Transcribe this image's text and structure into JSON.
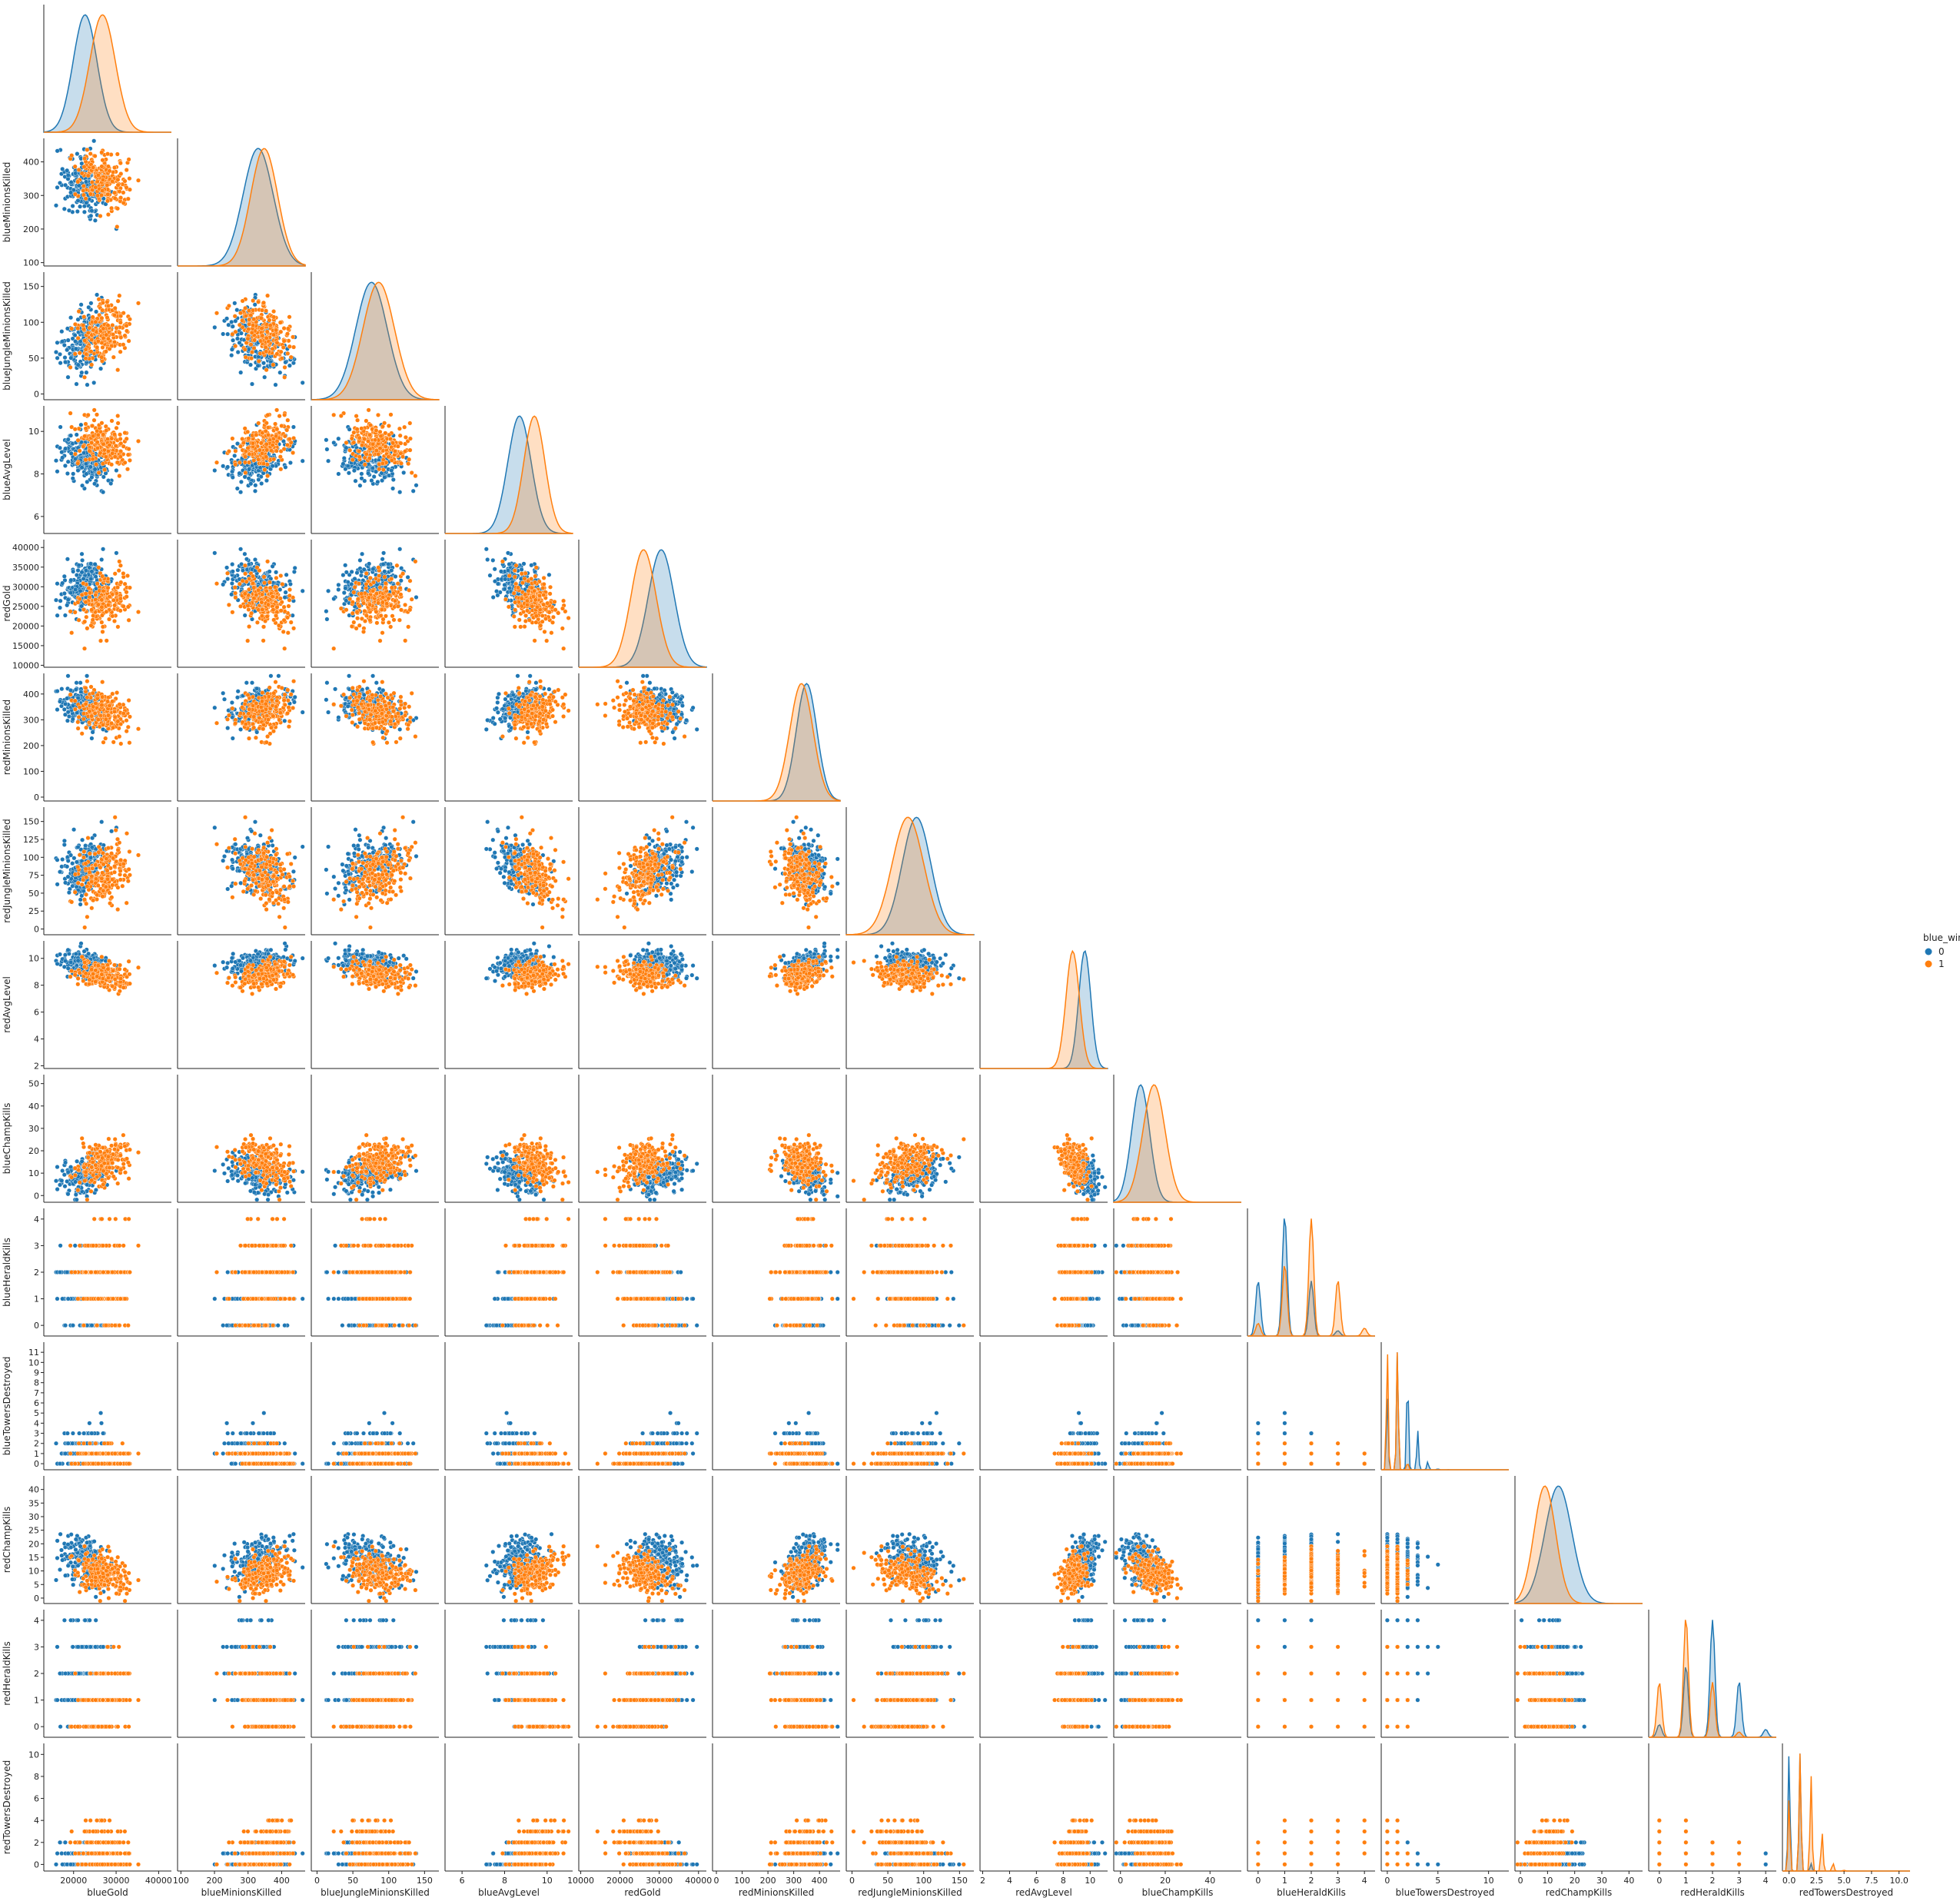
{
  "chart_data": {
    "type": "scatter",
    "kind": "pairplot (corner, lower triangle) with KDE diagonal",
    "hue": "blue_win",
    "legend": {
      "title": "blue_win",
      "entries": [
        "0",
        "1"
      ],
      "placement": "right"
    },
    "colors": {
      "0": "#1f77b4",
      "1": "#ff7f0e"
    },
    "variables": [
      {
        "name": "blueGold",
        "ticks": [
          20000,
          30000,
          40000
        ],
        "tick_labels": [
          "20000",
          "30000",
          "40000"
        ],
        "range": [
          13000,
          43000
        ],
        "stats": {
          "0": {
            "mean": 22700,
            "sd": 2800
          },
          "1": {
            "mean": 26800,
            "sd": 3000
          }
        },
        "discrete": false
      },
      {
        "name": "blueMinionsKilled",
        "ticks": [
          100,
          200,
          300,
          400
        ],
        "tick_labels": [
          "100",
          "200",
          "300",
          "400"
        ],
        "range": [
          90,
          470
        ],
        "stats": {
          "0": {
            "mean": 330,
            "sd": 45
          },
          "1": {
            "mean": 348,
            "sd": 40
          }
        },
        "discrete": false
      },
      {
        "name": "blueJungleMinionsKilled",
        "ticks": [
          0,
          50,
          100,
          150
        ],
        "tick_labels": [
          "0",
          "50",
          "100",
          "150"
        ],
        "range": [
          -8,
          170
        ],
        "stats": {
          "0": {
            "mean": 76,
            "sd": 22
          },
          "1": {
            "mean": 86,
            "sd": 22
          }
        },
        "discrete": false
      },
      {
        "name": "blueAvgLevel",
        "ticks": [
          6,
          8,
          10
        ],
        "tick_labels": [
          "6",
          "8",
          "10"
        ],
        "range": [
          5.2,
          11.2
        ],
        "stats": {
          "0": {
            "mean": 8.7,
            "sd": 0.55
          },
          "1": {
            "mean": 9.4,
            "sd": 0.5
          }
        },
        "discrete": false
      },
      {
        "name": "redGold",
        "ticks": [
          10000,
          15000,
          20000,
          25000,
          30000,
          35000,
          40000
        ],
        "tick_labels": [
          "10000",
          "20000",
          "30000",
          "40000"
        ],
        "tick_label_values": [
          10000,
          20000,
          30000,
          40000
        ],
        "y_tick_labels": [
          "10000",
          "15000",
          "20000",
          "25000",
          "30000",
          "35000",
          "40000"
        ],
        "range": [
          9500,
          42000
        ],
        "stats": {
          "0": {
            "mean": 30500,
            "sd": 3300
          },
          "1": {
            "mean": 26000,
            "sd": 3200
          }
        },
        "discrete": false
      },
      {
        "name": "redMinionsKilled",
        "ticks": [
          0,
          100,
          200,
          300,
          400
        ],
        "tick_labels": [
          "0",
          "100",
          "200",
          "300",
          "400"
        ],
        "range": [
          -15,
          480
        ],
        "stats": {
          "0": {
            "mean": 350,
            "sd": 40
          },
          "1": {
            "mean": 330,
            "sd": 45
          }
        },
        "discrete": false
      },
      {
        "name": "redJungleMinionsKilled",
        "ticks": [
          0,
          25,
          50,
          75,
          100,
          125,
          150
        ],
        "tick_labels": [
          "0",
          "50",
          "100",
          "150"
        ],
        "tick_label_values": [
          0,
          50,
          100,
          150
        ],
        "y_tick_labels": [
          "0",
          "25",
          "50",
          "75",
          "100",
          "125",
          "150"
        ],
        "range": [
          -8,
          170
        ],
        "stats": {
          "0": {
            "mean": 90,
            "sd": 20
          },
          "1": {
            "mean": 78,
            "sd": 22
          }
        },
        "discrete": false
      },
      {
        "name": "redAvgLevel",
        "ticks": [
          2,
          4,
          6,
          8,
          10
        ],
        "tick_labels": [
          "2",
          "4",
          "6",
          "8",
          "10"
        ],
        "range": [
          1.8,
          11.3
        ],
        "stats": {
          "0": {
            "mean": 9.6,
            "sd": 0.45
          },
          "1": {
            "mean": 8.7,
            "sd": 0.5
          }
        },
        "discrete": false
      },
      {
        "name": "blueChampKills",
        "ticks": [
          0,
          10,
          20,
          30,
          40,
          50
        ],
        "tick_labels": [
          "0",
          "20",
          "40"
        ],
        "tick_label_values": [
          0,
          20,
          40
        ],
        "y_tick_labels": [
          "0",
          "10",
          "20",
          "30",
          "40",
          "50"
        ],
        "range": [
          -3,
          54
        ],
        "stats": {
          "0": {
            "mean": 9,
            "sd": 4
          },
          "1": {
            "mean": 15,
            "sd": 5
          }
        },
        "discrete": false
      },
      {
        "name": "blueHeraldKills",
        "ticks": [
          0,
          1,
          2,
          3,
          4
        ],
        "tick_labels": [
          "0",
          "1",
          "2",
          "3",
          "4"
        ],
        "range": [
          -0.4,
          4.4
        ],
        "stats": {
          "0": {
            "mean": 1.0,
            "sd": 0.8
          },
          "1": {
            "mean": 1.9,
            "sd": 0.9
          }
        },
        "discrete": true
      },
      {
        "name": "blueTowersDestroyed",
        "ticks": [
          0,
          1,
          2,
          3,
          4,
          5,
          6,
          7,
          8,
          9,
          10,
          11
        ],
        "tick_labels": [
          "0",
          "5",
          "10"
        ],
        "tick_label_values": [
          0,
          5,
          10
        ],
        "y_tick_labels": [
          "0",
          "1",
          "2",
          "3",
          "4",
          "5",
          "6",
          "7",
          "8",
          "9",
          "10",
          "11"
        ],
        "range": [
          -0.6,
          12
        ],
        "stats": {
          "0": {
            "mean": 1.2,
            "sd": 1.2
          },
          "1": {
            "mean": 0.5,
            "sd": 0.6
          }
        },
        "discrete": true
      },
      {
        "name": "redChampKills",
        "ticks": [
          0,
          5,
          10,
          15,
          20,
          25,
          30,
          35,
          40
        ],
        "tick_labels": [
          "0",
          "10",
          "20",
          "30",
          "40"
        ],
        "tick_label_values": [
          0,
          10,
          20,
          30,
          40
        ],
        "y_tick_labels": [
          "0",
          "5",
          "10",
          "15",
          "20",
          "25",
          "30",
          "35",
          "40"
        ],
        "range": [
          -2,
          45
        ],
        "stats": {
          "0": {
            "mean": 14,
            "sd": 5
          },
          "1": {
            "mean": 9,
            "sd": 4
          }
        },
        "discrete": false
      },
      {
        "name": "redHeraldKills",
        "ticks": [
          0,
          1,
          2,
          3,
          4
        ],
        "tick_labels": [
          "0",
          "1",
          "2",
          "3",
          "4"
        ],
        "range": [
          -0.4,
          4.4
        ],
        "stats": {
          "0": {
            "mean": 1.9,
            "sd": 0.9
          },
          "1": {
            "mean": 1.0,
            "sd": 0.8
          }
        },
        "discrete": true
      },
      {
        "name": "redTowersDestroyed",
        "ticks": [
          0,
          2,
          4,
          6,
          8,
          10
        ],
        "tick_labels": [
          "0.0",
          "2.5",
          "5.0",
          "7.5",
          "10.0"
        ],
        "tick_label_values": [
          0,
          2.5,
          5,
          7.5,
          10
        ],
        "y_tick_labels": [
          "0",
          "2",
          "4",
          "6",
          "8",
          "10"
        ],
        "range": [
          -0.6,
          11
        ],
        "stats": {
          "0": {
            "mean": 0.5,
            "sd": 0.6
          },
          "1": {
            "mean": 1.2,
            "sd": 1.2
          }
        },
        "discrete": true
      }
    ]
  }
}
